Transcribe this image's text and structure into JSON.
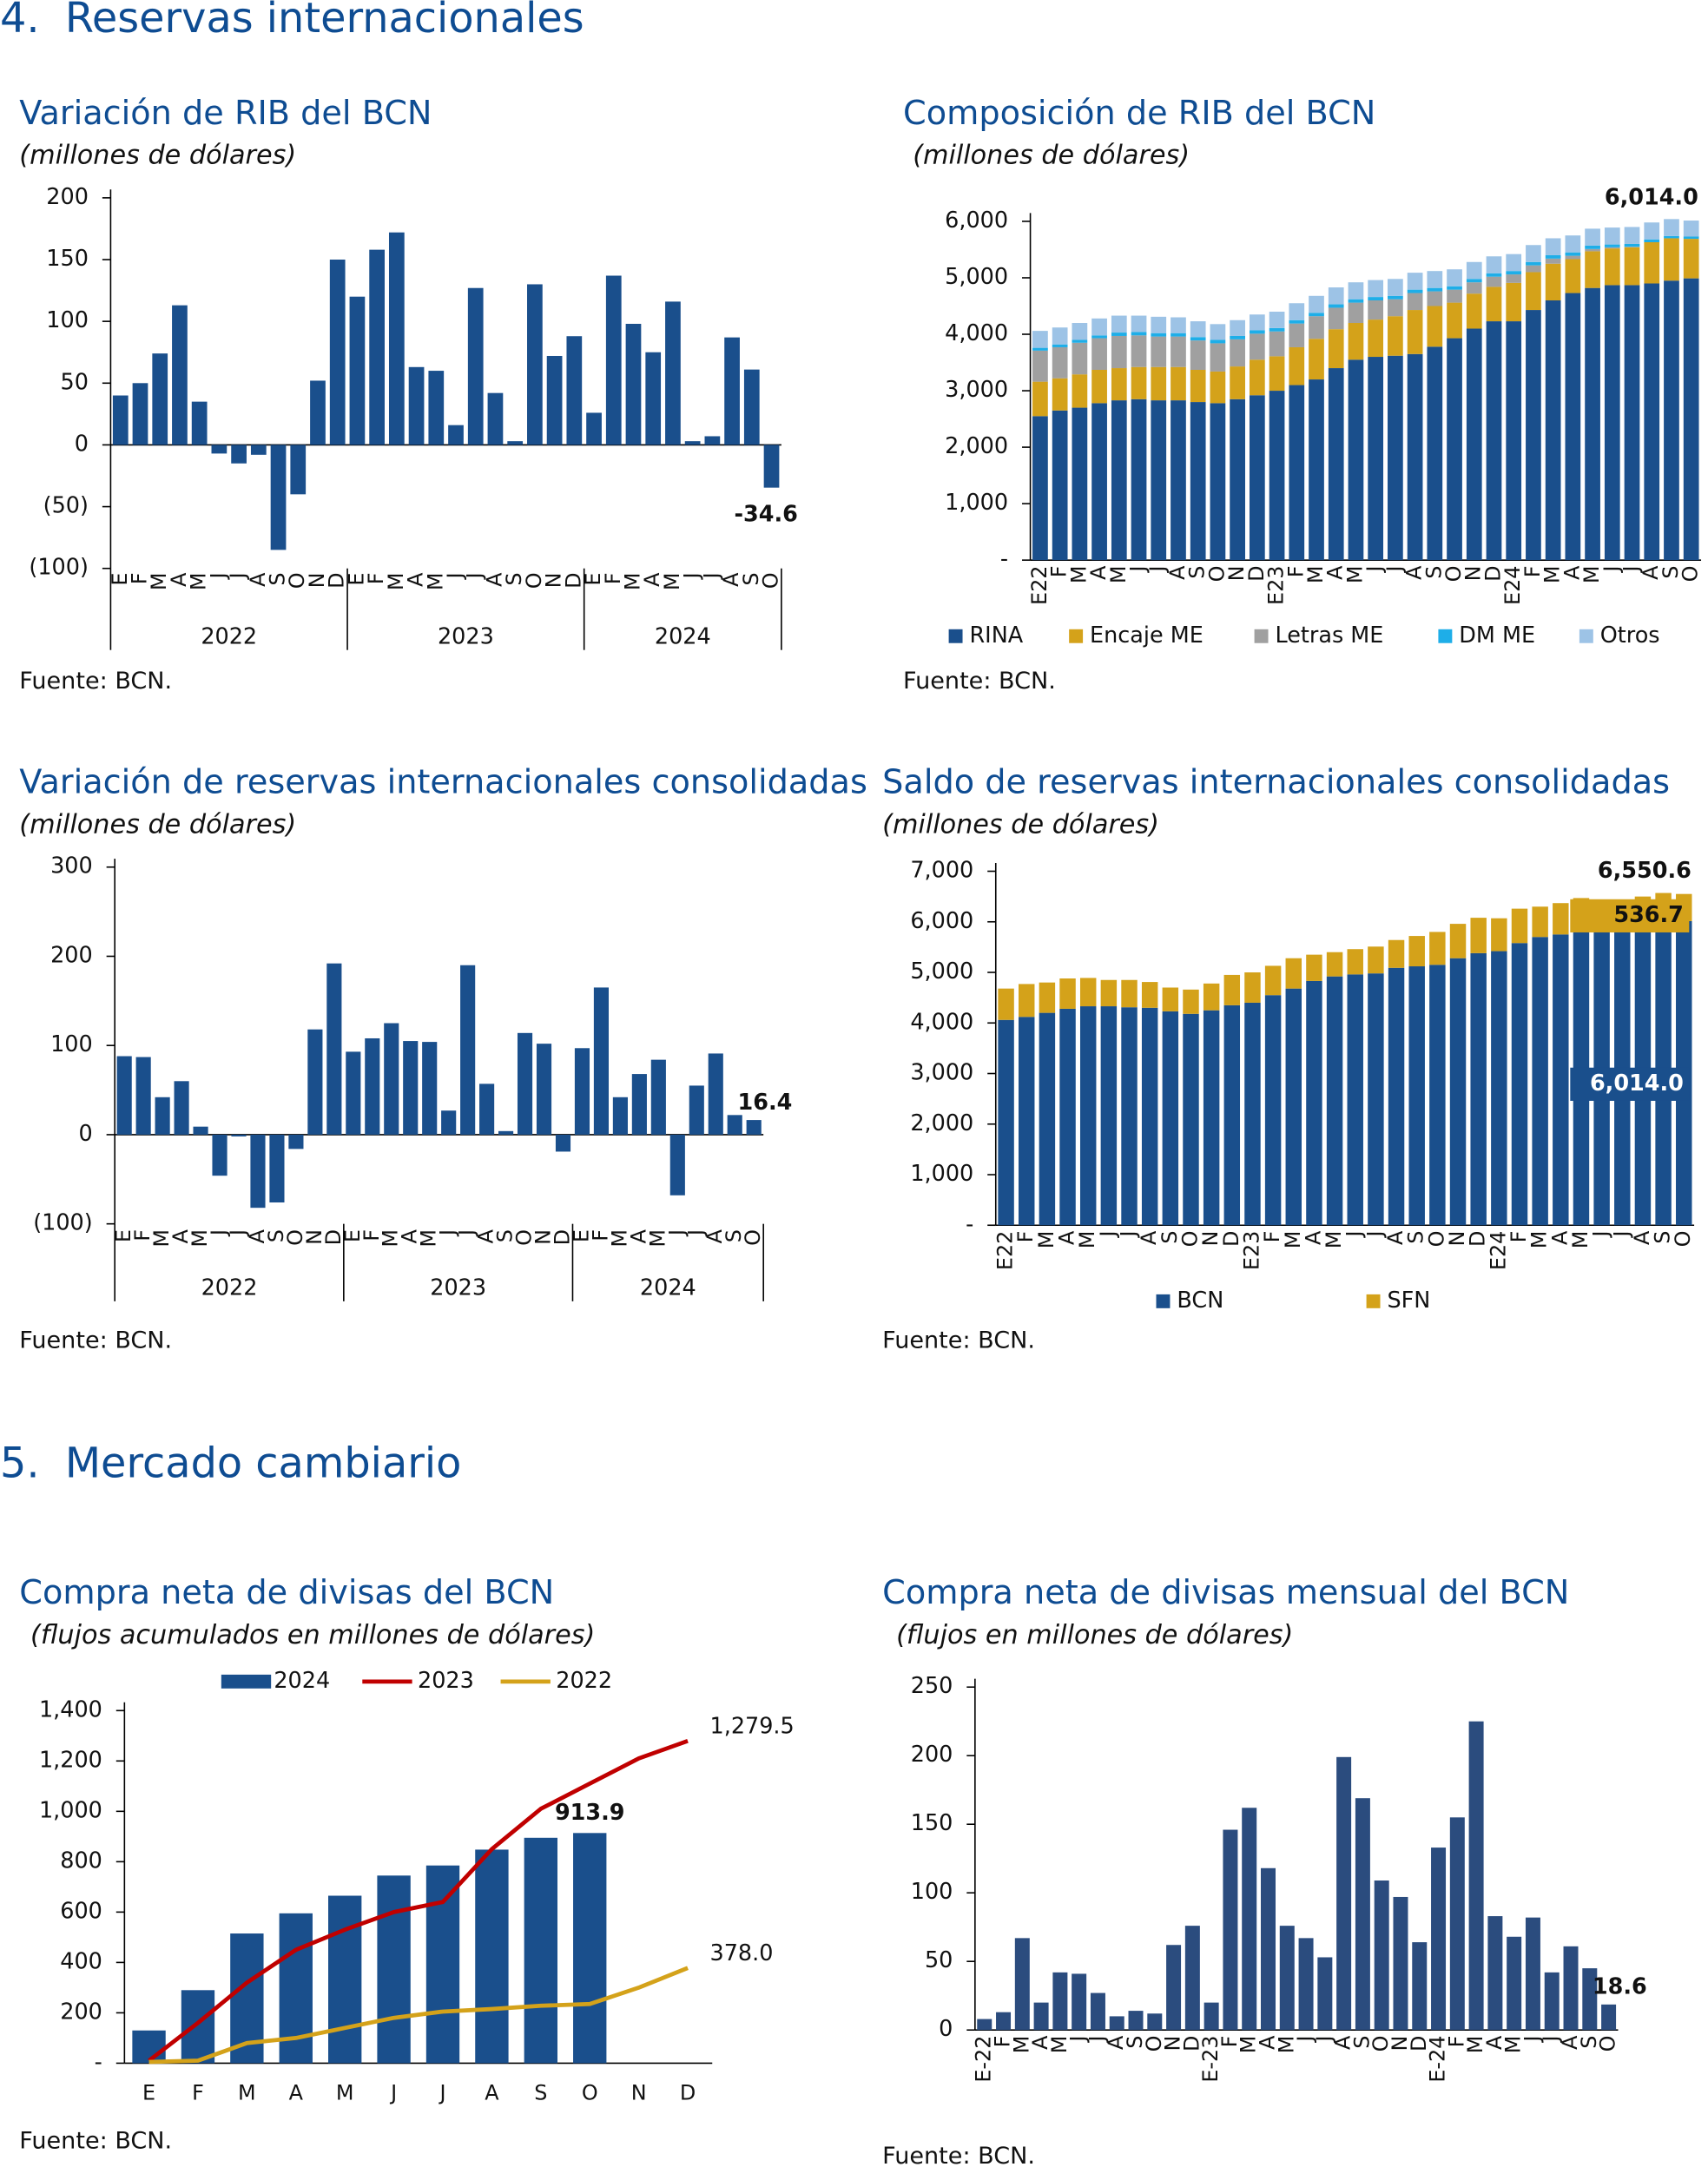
{
  "sections": [
    {
      "number": "4.",
      "title": "Reservas internacionales"
    },
    {
      "number": "5.",
      "title": "Mercado cambiario"
    }
  ],
  "chart_data": [
    {
      "type": "bar",
      "title": "Variación de RIB del BCN",
      "subtitle": "(millones de dólares)",
      "source": "Fuente: BCN.",
      "color": "#1a4f8c",
      "categories": [
        "E",
        "F",
        "M",
        "A",
        "M",
        "J",
        "J",
        "A",
        "S",
        "O",
        "N",
        "D",
        "E",
        "F",
        "M",
        "A",
        "M",
        "J",
        "J",
        "A",
        "S",
        "O",
        "N",
        "D",
        "E",
        "F",
        "M",
        "A",
        "M",
        "J",
        "J",
        "A",
        "S",
        "O"
      ],
      "groups": [
        "2022",
        "2023",
        "2024"
      ],
      "values": [
        40,
        50,
        74,
        113,
        35,
        -7,
        -15,
        -8,
        -85,
        -40,
        52,
        150,
        120,
        158,
        172,
        63,
        60,
        16,
        127,
        42,
        3,
        130,
        72,
        88,
        26,
        137,
        98,
        75,
        116,
        3,
        7,
        87,
        61,
        -34.6
      ],
      "value_labels": [
        null,
        null,
        null,
        null,
        null,
        null,
        null,
        null,
        null,
        null,
        null,
        null,
        null,
        null,
        null,
        null,
        null,
        null,
        null,
        null,
        null,
        null,
        null,
        null,
        null,
        null,
        null,
        null,
        null,
        null,
        null,
        null,
        null,
        "-34.6"
      ],
      "ylim": [
        -100,
        200
      ],
      "yticks": [
        {
          "value": -100,
          "label": "(100)"
        },
        {
          "value": -50,
          "label": "(50)"
        },
        0,
        50,
        100,
        150,
        200
      ]
    },
    {
      "type": "stacked_bar",
      "title": "Composición de RIB del BCN",
      "subtitle": "(millones de dólares)",
      "source": "Fuente: BCN.",
      "total_label": "6,014.0",
      "categories": [
        "E22",
        "F",
        "M",
        "A",
        "M",
        "J",
        "J",
        "A",
        "S",
        "O",
        "N",
        "D",
        "E23",
        "F",
        "M",
        "A",
        "M",
        "J",
        "J",
        "A",
        "S",
        "O",
        "N",
        "D",
        "E24",
        "F",
        "M",
        "A",
        "M",
        "J",
        "J",
        "A",
        "S",
        "O"
      ],
      "series": [
        {
          "name": "RINA",
          "color": "#1a4f8c",
          "values": [
            2550,
            2650,
            2700,
            2780,
            2830,
            2850,
            2830,
            2830,
            2800,
            2780,
            2850,
            2920,
            3000,
            3100,
            3200,
            3400,
            3550,
            3600,
            3620,
            3650,
            3780,
            3930,
            4100,
            4230,
            4230,
            4430,
            4600,
            4730,
            4820,
            4870,
            4870,
            4900,
            4950,
            4990
          ]
        },
        {
          "name": "Encaje ME",
          "color": "#d4a21a",
          "values": [
            610,
            570,
            590,
            590,
            570,
            570,
            590,
            590,
            570,
            560,
            580,
            630,
            610,
            670,
            720,
            690,
            650,
            660,
            700,
            780,
            720,
            630,
            620,
            610,
            680,
            670,
            650,
            600,
            650,
            650,
            670,
            730,
            750,
            700
          ]
        },
        {
          "name": "Letras ME",
          "color": "#a0a0a0",
          "values": [
            550,
            550,
            560,
            560,
            570,
            560,
            540,
            540,
            520,
            500,
            480,
            460,
            440,
            420,
            400,
            380,
            360,
            340,
            300,
            300,
            260,
            230,
            200,
            180,
            150,
            120,
            90,
            60,
            40,
            20,
            10,
            0,
            0,
            0
          ]
        },
        {
          "name": "DM ME",
          "color": "#1eaee8",
          "values": [
            50,
            50,
            50,
            50,
            60,
            60,
            60,
            60,
            60,
            60,
            60,
            60,
            60,
            60,
            60,
            60,
            60,
            60,
            60,
            60,
            60,
            60,
            60,
            60,
            60,
            60,
            60,
            60,
            60,
            50,
            50,
            50,
            40,
            40
          ]
        },
        {
          "name": "Otros",
          "color": "#9dc3e6",
          "values": [
            300,
            300,
            300,
            300,
            300,
            290,
            290,
            280,
            280,
            280,
            280,
            280,
            290,
            300,
            300,
            300,
            300,
            300,
            300,
            300,
            300,
            300,
            300,
            300,
            300,
            300,
            300,
            300,
            300,
            300,
            300,
            300,
            300,
            284
          ]
        }
      ],
      "ylim": [
        0,
        6000
      ],
      "yticks": [
        {
          "value": 0,
          "label": "-"
        },
        {
          "value": 1000,
          "label": "1,000"
        },
        {
          "value": 2000,
          "label": "2,000"
        },
        {
          "value": 3000,
          "label": "3,000"
        },
        {
          "value": 4000,
          "label": "4,000"
        },
        {
          "value": 5000,
          "label": "5,000"
        },
        {
          "value": 6000,
          "label": "6,000"
        }
      ]
    },
    {
      "type": "bar",
      "title": "Variación de reservas internacionales consolidadas",
      "subtitle": "(millones de dólares)",
      "source": "Fuente: BCN.",
      "color": "#1a4f8c",
      "categories": [
        "E",
        "F",
        "M",
        "A",
        "M",
        "J",
        "J",
        "A",
        "S",
        "O",
        "N",
        "D",
        "E",
        "F",
        "M",
        "A",
        "M",
        "J",
        "J",
        "A",
        "S",
        "O",
        "N",
        "D",
        "E",
        "F",
        "M",
        "A",
        "M",
        "J",
        "J",
        "A",
        "S",
        "O"
      ],
      "groups": [
        "2022",
        "2023",
        "2024"
      ],
      "values": [
        88,
        87,
        42,
        60,
        9,
        -46,
        -2,
        -82,
        -76,
        -16,
        118,
        192,
        93,
        108,
        125,
        105,
        104,
        27,
        190,
        57,
        4,
        114,
        102,
        -19,
        97,
        165,
        42,
        68,
        84,
        -68,
        55,
        91,
        22,
        16.4
      ],
      "value_labels": [
        null,
        null,
        null,
        null,
        null,
        null,
        null,
        null,
        null,
        null,
        null,
        null,
        null,
        null,
        null,
        null,
        null,
        null,
        null,
        null,
        null,
        null,
        null,
        null,
        null,
        null,
        null,
        null,
        null,
        null,
        null,
        null,
        null,
        "16.4"
      ],
      "ylim": [
        -100,
        300
      ],
      "yticks": [
        {
          "value": -100,
          "label": "(100)"
        },
        0,
        100,
        200,
        300
      ]
    },
    {
      "type": "stacked_bar",
      "title": "Saldo de reservas internacionales consolidadas",
      "subtitle": "(millones de dólares)",
      "source": "Fuente: BCN.",
      "total_label": "6,550.6",
      "categories": [
        "E22",
        "F",
        "M",
        "A",
        "M",
        "J",
        "J",
        "A",
        "S",
        "O",
        "N",
        "D",
        "E23",
        "F",
        "M",
        "A",
        "M",
        "J",
        "J",
        "A",
        "S",
        "O",
        "N",
        "D",
        "E24",
        "F",
        "M",
        "A",
        "M",
        "J",
        "J",
        "A",
        "S",
        "O"
      ],
      "series": [
        {
          "name": "BCN",
          "color": "#1a4f8c",
          "values": [
            4060,
            4120,
            4200,
            4280,
            4330,
            4330,
            4310,
            4300,
            4230,
            4180,
            4250,
            4350,
            4400,
            4550,
            4680,
            4830,
            4920,
            4960,
            4980,
            5090,
            5120,
            5150,
            5280,
            5380,
            5420,
            5580,
            5700,
            5750,
            5870,
            5890,
            5900,
            5980,
            6040,
            6014.0
          ],
          "value_labels": [
            null,
            null,
            null,
            null,
            null,
            null,
            null,
            null,
            null,
            null,
            null,
            null,
            null,
            null,
            null,
            null,
            null,
            null,
            null,
            null,
            null,
            null,
            null,
            null,
            null,
            null,
            null,
            null,
            null,
            null,
            null,
            null,
            null,
            "6,014.0"
          ]
        },
        {
          "name": "SFN",
          "color": "#d4a21a",
          "values": [
            620,
            650,
            600,
            600,
            560,
            520,
            540,
            510,
            470,
            480,
            530,
            600,
            600,
            580,
            600,
            520,
            480,
            500,
            530,
            550,
            600,
            650,
            680,
            700,
            650,
            680,
            600,
            620,
            600,
            500,
            500,
            520,
            530,
            536.7
          ],
          "value_labels": [
            null,
            null,
            null,
            null,
            null,
            null,
            null,
            null,
            null,
            null,
            null,
            null,
            null,
            null,
            null,
            null,
            null,
            null,
            null,
            null,
            null,
            null,
            null,
            null,
            null,
            null,
            null,
            null,
            null,
            null,
            null,
            null,
            null,
            "536.7"
          ]
        }
      ],
      "ylim": [
        0,
        7000
      ],
      "yticks": [
        {
          "value": 0,
          "label": "-"
        },
        {
          "value": 1000,
          "label": "1,000"
        },
        {
          "value": 2000,
          "label": "2,000"
        },
        {
          "value": 3000,
          "label": "3,000"
        },
        {
          "value": 4000,
          "label": "4,000"
        },
        {
          "value": 5000,
          "label": "5,000"
        },
        {
          "value": 6000,
          "label": "6,000"
        },
        {
          "value": 7000,
          "label": "7,000"
        }
      ]
    },
    {
      "type": "bar_line",
      "title": "Compra neta de divisas del BCN",
      "subtitle": "(flujos acumulados en millones de dólares)",
      "source": "Fuente: BCN.",
      "categories": [
        "E",
        "F",
        "M",
        "A",
        "M",
        "J",
        "J",
        "A",
        "S",
        "O",
        "N",
        "D"
      ],
      "series": [
        {
          "name": "2024",
          "type": "bar",
          "color": "#1a4f8c",
          "values": [
            130,
            290,
            515,
            595,
            665,
            745,
            785,
            848,
            895,
            913.9,
            null,
            null
          ],
          "value_labels": [
            null,
            null,
            null,
            null,
            null,
            null,
            null,
            null,
            null,
            "913.9",
            null,
            null
          ]
        },
        {
          "name": "2023",
          "type": "line",
          "color": "#c00000",
          "values": [
            10,
            160,
            320,
            450,
            530,
            600,
            640,
            850,
            1010,
            1110,
            1210,
            1279.5
          ],
          "value_labels": [
            null,
            null,
            null,
            null,
            null,
            null,
            null,
            null,
            null,
            null,
            null,
            "1,279.5"
          ]
        },
        {
          "name": "2022",
          "type": "line",
          "color": "#d4a21a",
          "values": [
            5,
            10,
            80,
            100,
            140,
            180,
            205,
            215,
            228,
            235,
            300,
            378.0
          ],
          "value_labels": [
            null,
            null,
            null,
            null,
            null,
            null,
            null,
            null,
            null,
            null,
            null,
            "378.0"
          ]
        }
      ],
      "ylim": [
        0,
        1400
      ],
      "yticks": [
        {
          "value": 0,
          "label": "-"
        },
        200,
        400,
        600,
        800,
        {
          "value": 1000,
          "label": "1,000"
        },
        {
          "value": 1200,
          "label": "1,200"
        },
        {
          "value": 1400,
          "label": "1,400"
        }
      ]
    },
    {
      "type": "bar",
      "title": "Compra neta de divisas mensual del BCN",
      "subtitle": "(flujos en millones de dólares)",
      "source": "Fuente: BCN.",
      "color": "#2b4c7e",
      "categories": [
        "E-22",
        "F",
        "M",
        "A",
        "M",
        "J",
        "J",
        "A",
        "S",
        "O",
        "N",
        "D",
        "E-23",
        "F",
        "M",
        "A",
        "M",
        "J",
        "J",
        "A",
        "S",
        "O",
        "N",
        "D",
        "E-24",
        "F",
        "M",
        "A",
        "M",
        "J",
        "J",
        "A",
        "S",
        "O"
      ],
      "values": [
        8,
        13,
        67,
        20,
        42,
        41,
        27,
        10,
        14,
        12,
        62,
        76,
        20,
        146,
        162,
        118,
        76,
        67,
        53,
        199,
        169,
        109,
        97,
        64,
        133,
        155,
        225,
        83,
        68,
        82,
        42,
        61,
        45,
        18.6
      ],
      "value_labels": [
        null,
        null,
        null,
        null,
        null,
        null,
        null,
        null,
        null,
        null,
        null,
        null,
        null,
        null,
        null,
        null,
        null,
        null,
        null,
        null,
        null,
        null,
        null,
        null,
        null,
        null,
        null,
        null,
        null,
        null,
        null,
        null,
        null,
        "18.6"
      ],
      "ylim": [
        0,
        250
      ],
      "yticks": [
        0,
        50,
        100,
        150,
        200,
        250
      ]
    }
  ]
}
